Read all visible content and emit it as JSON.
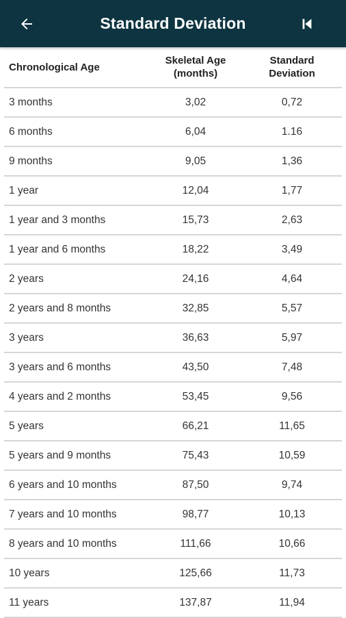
{
  "header": {
    "title": "Standard Deviation",
    "back_icon": "arrow-left-icon",
    "first_icon": "skip-to-first-icon"
  },
  "table": {
    "columns": [
      "Chronological Age",
      "Skeletal Age (months)",
      "Standard Deviation"
    ],
    "column_lines": {
      "col2": [
        "Skeletal Age",
        "(months)"
      ],
      "col3": [
        "Standard",
        "Deviation"
      ]
    },
    "rows": [
      [
        "3 months",
        "3,02",
        "0,72"
      ],
      [
        "6 months",
        "6,04",
        "1.16"
      ],
      [
        "9 months",
        "9,05",
        "1,36"
      ],
      [
        "1 year",
        "12,04",
        "1,77"
      ],
      [
        "1 year and 3 months",
        "15,73",
        "2,63"
      ],
      [
        "1 year and 6 months",
        "18,22",
        "3,49"
      ],
      [
        "2 years",
        "24,16",
        "4,64"
      ],
      [
        "2 years and 8 months",
        "32,85",
        "5,57"
      ],
      [
        "3 years",
        "36,63",
        "5,97"
      ],
      [
        "3 years and 6 months",
        "43,50",
        "7,48"
      ],
      [
        "4 years and 2 months",
        "53,45",
        "9,56"
      ],
      [
        "5 years",
        "66,21",
        "11,65"
      ],
      [
        "5 years and 9 months",
        "75,43",
        "10,59"
      ],
      [
        "6 years and 10 months",
        "87,50",
        "9,74"
      ],
      [
        "7 years and 10 months",
        "98,77",
        "10,13"
      ],
      [
        "8 years and 10 months",
        "111,66",
        "10,66"
      ],
      [
        "10 years",
        "125,66",
        "11,73"
      ],
      [
        "11 years",
        "137,87",
        "11,94"
      ]
    ]
  },
  "colors": {
    "appbar": "#0d3440",
    "divider": "#d6d6d6",
    "text": "#333333"
  }
}
